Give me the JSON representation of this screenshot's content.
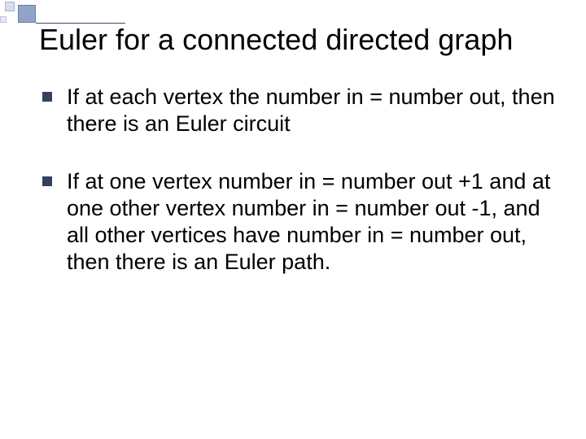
{
  "slide": {
    "title": "Euler for a connected directed graph",
    "bullets": [
      "If at each vertex the number in = number out, then there is an Euler circuit",
      "If at one vertex number in = number out +1 and at one other vertex number in = number out -1, and all other vertices have number in = number out, then there is an Euler path."
    ]
  },
  "style": {
    "title_fontsize": 36,
    "body_fontsize": 27,
    "bullet_color": "#33405f",
    "text_color": "#000000",
    "background_color": "#ffffff",
    "deco_colors": {
      "big": "#90a4c8",
      "mid": "#d7deec",
      "sm": "#e6eaf3",
      "line": "#3b4a6b"
    }
  }
}
